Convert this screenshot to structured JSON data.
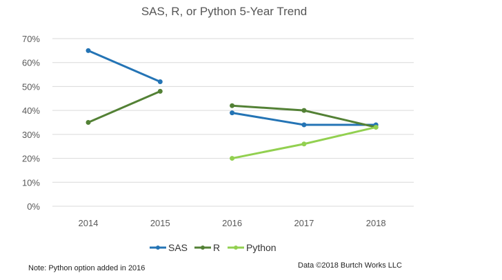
{
  "chart_data": {
    "type": "line",
    "title": "SAS, R, or Python 5-Year Trend",
    "categories": [
      "2014",
      "2015",
      "2016",
      "2017",
      "2018"
    ],
    "ylim": [
      0,
      70
    ],
    "yticks": [
      "0%",
      "10%",
      "20%",
      "30%",
      "40%",
      "50%",
      "60%",
      "70%"
    ],
    "grid": true,
    "legend": "bottom",
    "series": [
      {
        "name": "SAS",
        "color": "#2474b5",
        "segments": [
          [
            [
              0,
              65
            ],
            [
              1,
              52
            ]
          ],
          [
            [
              2,
              39
            ],
            [
              3,
              34
            ],
            [
              4,
              34
            ]
          ]
        ]
      },
      {
        "name": "R",
        "color": "#538135",
        "segments": [
          [
            [
              0,
              35
            ],
            [
              1,
              48
            ]
          ],
          [
            [
              2,
              42
            ],
            [
              3,
              40
            ],
            [
              4,
              33
            ]
          ]
        ]
      },
      {
        "name": "Python",
        "color": "#92d050",
        "segments": [
          [
            [
              2,
              20
            ],
            [
              3,
              26
            ],
            [
              4,
              33
            ]
          ]
        ]
      }
    ]
  },
  "footer": {
    "note": "Note: Python option added in 2016",
    "credit": "Data ©2018 Burtch Works LLC"
  }
}
